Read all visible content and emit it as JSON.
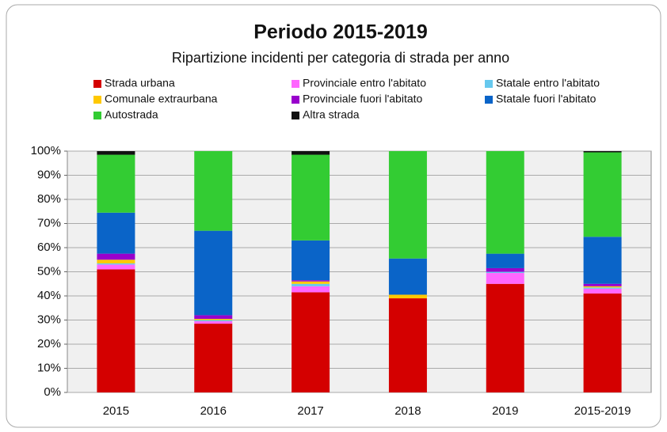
{
  "chart_data": {
    "type": "stacked_bar",
    "title": "Periodo 2015-2019",
    "subtitle": "Ripartizione incidenti per categoria di strada per anno",
    "categories": [
      "2015",
      "2016",
      "2017",
      "2018",
      "2019",
      "2015-2019"
    ],
    "series": [
      {
        "name": "Strada urbana",
        "color": "#d40000",
        "values": [
          51,
          28.5,
          41.5,
          39,
          45,
          41
        ]
      },
      {
        "name": "Provinciale entro l'abitato",
        "color": "#ff66ff",
        "values": [
          2,
          1,
          2.5,
          0,
          4.5,
          2
        ]
      },
      {
        "name": "Statale entro l'abitato",
        "color": "#66c8ee",
        "values": [
          0.5,
          0.5,
          1,
          0,
          0.5,
          0.5
        ]
      },
      {
        "name": "Comunale extraurbana",
        "color": "#ffc800",
        "values": [
          1.5,
          0.5,
          1,
          1.5,
          0,
          0.5
        ]
      },
      {
        "name": "Provinciale fuori l'abitato",
        "color": "#9900cc",
        "values": [
          2.5,
          1.5,
          0.5,
          0,
          1.5,
          1
        ]
      },
      {
        "name": "Statale fuori l'abitato",
        "color": "#0a64c8",
        "values": [
          17,
          35,
          16.5,
          15,
          6,
          19.5
        ]
      },
      {
        "name": "Autostrada",
        "color": "#33cc33",
        "values": [
          24,
          33,
          35.5,
          44.5,
          42.5,
          35
        ]
      },
      {
        "name": "Altra strada",
        "color": "#111111",
        "values": [
          1.5,
          0,
          1.5,
          0,
          0,
          0.5
        ]
      }
    ],
    "ylim": [
      0,
      100
    ],
    "yticks": [
      {
        "value": 0,
        "label": "0%"
      },
      {
        "value": 10,
        "label": "10%"
      },
      {
        "value": 20,
        "label": "20%"
      },
      {
        "value": 30,
        "label": "30%"
      },
      {
        "value": 40,
        "label": "40%"
      },
      {
        "value": 50,
        "label": "50%"
      },
      {
        "value": 60,
        "label": "60%"
      },
      {
        "value": 70,
        "label": "70%"
      },
      {
        "value": 80,
        "label": "80%"
      },
      {
        "value": 90,
        "label": "90%"
      },
      {
        "value": 100,
        "label": "100%"
      }
    ],
    "grid": true
  }
}
